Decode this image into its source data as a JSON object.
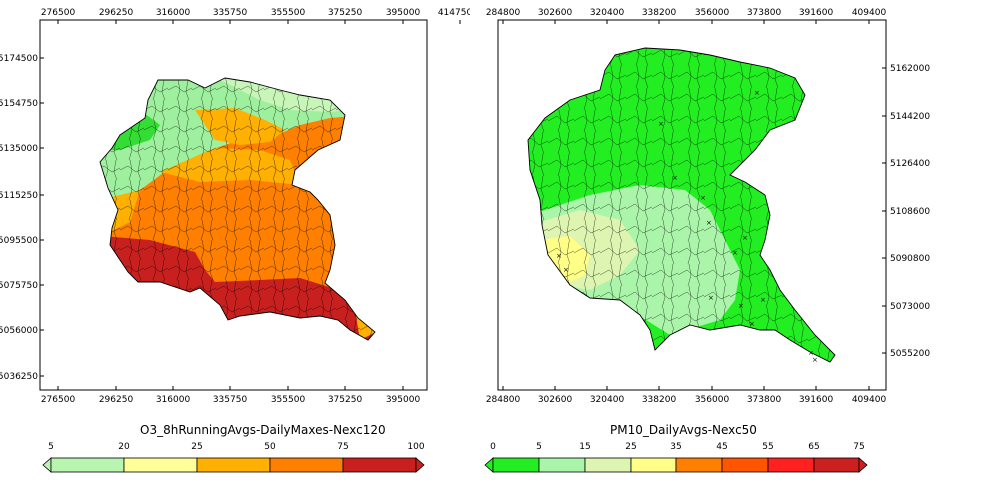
{
  "left_map": {
    "x_ticks": [
      "276500",
      "296250",
      "316000",
      "335750",
      "355500",
      "375250",
      "395000",
      "414750"
    ],
    "y_ticks": [
      "5174500",
      "5154750",
      "5135000",
      "5115250",
      "5095500",
      "5075750",
      "5056000",
      "5036250"
    ],
    "legend_title": "O3_8hRunningAvgs-DailyMaxes-Nexc120",
    "legend_labels": [
      "5",
      "20",
      "25",
      "50",
      "75",
      "100"
    ],
    "legend_colors": [
      "#b8f5b0",
      "#ffff99",
      "#ffb000",
      "#ff7f00",
      "#c8201e"
    ]
  },
  "right_map": {
    "x_ticks": [
      "284800",
      "302600",
      "320400",
      "338200",
      "356000",
      "373800",
      "391600",
      "409400"
    ],
    "y_ticks": [
      "5162000",
      "5144200",
      "5126400",
      "5108600",
      "5090800",
      "5073000",
      "5055200"
    ],
    "legend_title": "PM10_DailyAvgs-Nexc50",
    "legend_labels": [
      "0",
      "5",
      "15",
      "25",
      "35",
      "45",
      "55",
      "65",
      "75"
    ],
    "legend_colors": [
      "#22ee22",
      "#aaf5aa",
      "#ddf5b0",
      "#ffff88",
      "#ff7f00",
      "#ff5500",
      "#ff2020",
      "#cc2020"
    ]
  },
  "map_colors": {
    "o3_green": "#9ef09e",
    "o3_green_dark": "#33dd33",
    "o3_lightgreen": "#c8f5b8",
    "o3_orange_light": "#ffb000",
    "o3_orange": "#ff7f00",
    "o3_red": "#c8201e",
    "pm_green": "#22ee22",
    "pm_lightgreen": "#aaf5aa",
    "pm_palegreen": "#ddf5b0",
    "pm_yellow": "#ffff88"
  }
}
